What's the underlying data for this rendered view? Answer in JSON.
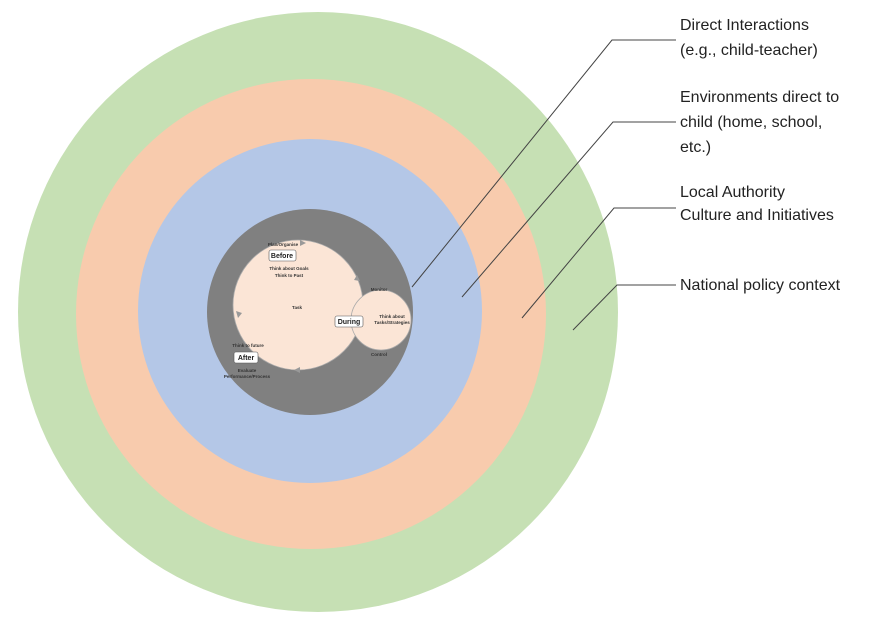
{
  "layers": [
    {
      "label": [
        "Direct Interactions",
        "(e.g., child-teacher)"
      ]
    },
    {
      "label": [
        "Environments direct to",
        "child (home, school,",
        "etc.)"
      ]
    },
    {
      "label": [
        "Local Authority",
        "Culture and Initiatives"
      ]
    },
    {
      "label": [
        "National policy context"
      ]
    }
  ],
  "cycle": {
    "center": "Task",
    "before": {
      "title": "Before",
      "top": "Plan/Organise",
      "lines": [
        "Think about Goals",
        "Think to Past"
      ]
    },
    "during": {
      "title": "During",
      "top": "Monitor",
      "lines": [
        "Think about",
        "Tasks/Strategies"
      ],
      "bottom": "Control"
    },
    "after": {
      "title": "After",
      "top": "Think to future",
      "lines": [
        "Evaluate",
        "Performance/Process"
      ]
    }
  }
}
